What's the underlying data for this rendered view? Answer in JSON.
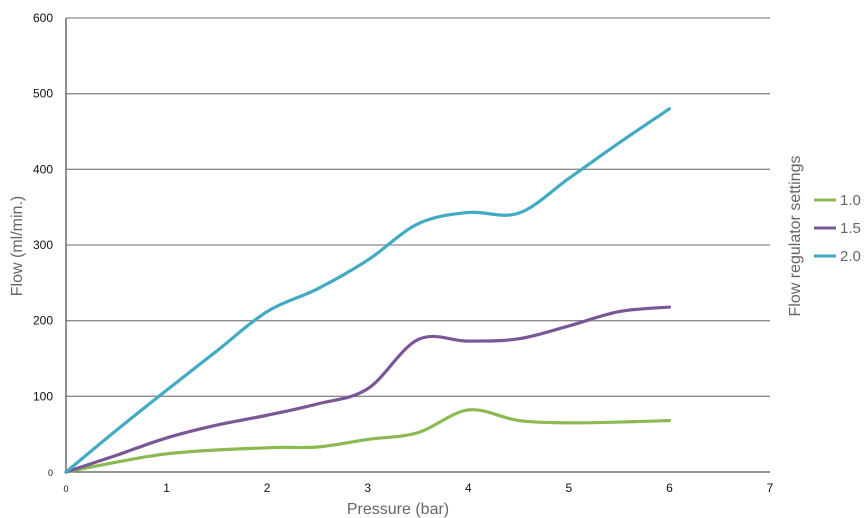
{
  "chart_data": {
    "type": "line",
    "xlabel": "Pressure (bar)",
    "ylabel": "Flow (ml/min.)",
    "legend_title": "Flow regulator settings",
    "legend_position": "right",
    "grid": "horizontal",
    "xlim": [
      0,
      7
    ],
    "ylim": [
      0,
      600
    ],
    "x_ticks": [
      "0",
      "1",
      "2",
      "3",
      "4",
      "5",
      "6",
      "7"
    ],
    "y_ticks": [
      "0",
      "100",
      "200",
      "300",
      "400",
      "500",
      "600"
    ],
    "series": [
      {
        "name": "1.0",
        "color": "#8cba52",
        "points": [
          [
            0,
            0
          ],
          [
            1,
            24
          ],
          [
            2,
            32
          ],
          [
            2.5,
            33
          ],
          [
            3,
            43
          ],
          [
            3.5,
            52
          ],
          [
            4,
            82
          ],
          [
            4.5,
            68
          ],
          [
            5,
            65
          ],
          [
            5.5,
            66
          ],
          [
            6,
            68
          ]
        ]
      },
      {
        "name": "1.5",
        "color": "#7a5797",
        "points": [
          [
            0,
            0
          ],
          [
            0.5,
            22
          ],
          [
            1,
            45
          ],
          [
            1.5,
            62
          ],
          [
            2,
            75
          ],
          [
            2.5,
            90
          ],
          [
            3,
            110
          ],
          [
            3.5,
            175
          ],
          [
            4,
            173
          ],
          [
            4.5,
            176
          ],
          [
            5,
            193
          ],
          [
            5.5,
            212
          ],
          [
            6,
            218
          ]
        ]
      },
      {
        "name": "2.0",
        "color": "#41aac4",
        "points": [
          [
            0,
            0
          ],
          [
            0.5,
            55
          ],
          [
            1,
            108
          ],
          [
            1.5,
            160
          ],
          [
            2,
            212
          ],
          [
            2.5,
            242
          ],
          [
            3,
            280
          ],
          [
            3.5,
            328
          ],
          [
            4,
            343
          ],
          [
            4.5,
            342
          ],
          [
            5,
            388
          ],
          [
            5.5,
            435
          ],
          [
            6,
            480
          ]
        ]
      }
    ]
  }
}
